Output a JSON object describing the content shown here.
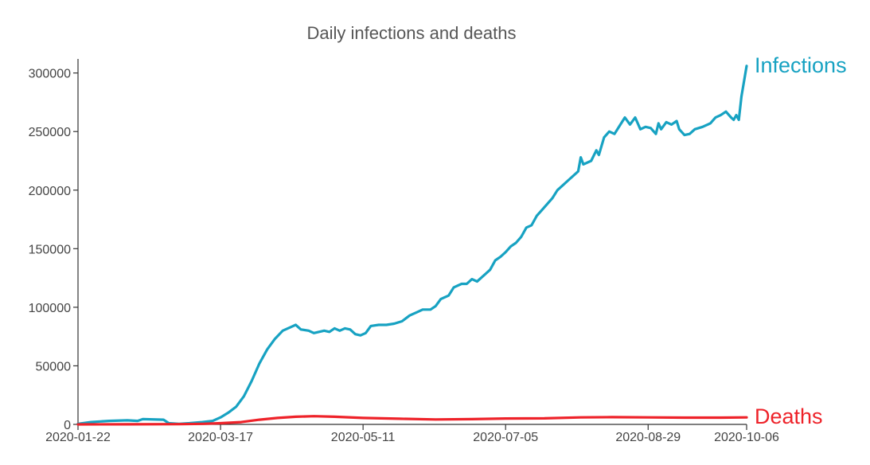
{
  "chart_data": {
    "type": "line",
    "title": "Daily infections and deaths",
    "xlabel": "",
    "ylabel": "",
    "x_ticks": [
      "2020-01-22",
      "2020-03-17",
      "2020-05-11",
      "2020-07-05",
      "2020-08-29",
      "2020-10-06"
    ],
    "y_ticks": [
      0,
      50000,
      100000,
      150000,
      200000,
      250000,
      300000
    ],
    "xlim": [
      "2020-01-22",
      "2020-10-06"
    ],
    "ylim": [
      0,
      312000
    ],
    "grid": false,
    "legend": "direct labels at line ends",
    "series": [
      {
        "name": "Infections",
        "color": "#17a2c2",
        "points": [
          [
            "2020-01-22",
            500
          ],
          [
            "2020-01-27",
            2000
          ],
          [
            "2020-02-03",
            3000
          ],
          [
            "2020-02-10",
            3500
          ],
          [
            "2020-02-14",
            3000
          ],
          [
            "2020-02-16",
            4500
          ],
          [
            "2020-02-24",
            4000
          ],
          [
            "2020-02-26",
            1000
          ],
          [
            "2020-03-01",
            500
          ],
          [
            "2020-03-05",
            1000
          ],
          [
            "2020-03-10",
            2000
          ],
          [
            "2020-03-14",
            3000
          ],
          [
            "2020-03-17",
            6000
          ],
          [
            "2020-03-20",
            10000
          ],
          [
            "2020-03-23",
            15000
          ],
          [
            "2020-03-26",
            24000
          ],
          [
            "2020-03-29",
            37000
          ],
          [
            "2020-04-01",
            52000
          ],
          [
            "2020-04-04",
            64000
          ],
          [
            "2020-04-07",
            73000
          ],
          [
            "2020-04-10",
            80000
          ],
          [
            "2020-04-13",
            83000
          ],
          [
            "2020-04-15",
            85000
          ],
          [
            "2020-04-17",
            81000
          ],
          [
            "2020-04-20",
            80000
          ],
          [
            "2020-04-22",
            78000
          ],
          [
            "2020-04-24",
            79000
          ],
          [
            "2020-04-26",
            80000
          ],
          [
            "2020-04-28",
            79000
          ],
          [
            "2020-04-30",
            82000
          ],
          [
            "2020-05-02",
            80000
          ],
          [
            "2020-05-04",
            82000
          ],
          [
            "2020-05-06",
            81000
          ],
          [
            "2020-05-08",
            77000
          ],
          [
            "2020-05-10",
            76000
          ],
          [
            "2020-05-12",
            78000
          ],
          [
            "2020-05-14",
            84000
          ],
          [
            "2020-05-17",
            85000
          ],
          [
            "2020-05-20",
            85000
          ],
          [
            "2020-05-23",
            86000
          ],
          [
            "2020-05-26",
            88000
          ],
          [
            "2020-05-29",
            93000
          ],
          [
            "2020-06-01",
            96000
          ],
          [
            "2020-06-03",
            98000
          ],
          [
            "2020-06-06",
            98000
          ],
          [
            "2020-06-08",
            101000
          ],
          [
            "2020-06-10",
            107000
          ],
          [
            "2020-06-13",
            110000
          ],
          [
            "2020-06-15",
            117000
          ],
          [
            "2020-06-18",
            120000
          ],
          [
            "2020-06-20",
            120000
          ],
          [
            "2020-06-22",
            124000
          ],
          [
            "2020-06-24",
            122000
          ],
          [
            "2020-06-27",
            128000
          ],
          [
            "2020-06-29",
            132000
          ],
          [
            "2020-07-01",
            140000
          ],
          [
            "2020-07-03",
            143000
          ],
          [
            "2020-07-05",
            147000
          ],
          [
            "2020-07-07",
            152000
          ],
          [
            "2020-07-09",
            155000
          ],
          [
            "2020-07-11",
            160000
          ],
          [
            "2020-07-13",
            168000
          ],
          [
            "2020-07-15",
            170000
          ],
          [
            "2020-07-17",
            178000
          ],
          [
            "2020-07-19",
            183000
          ],
          [
            "2020-07-21",
            188000
          ],
          [
            "2020-07-23",
            193000
          ],
          [
            "2020-07-25",
            200000
          ],
          [
            "2020-07-27",
            204000
          ],
          [
            "2020-07-29",
            208000
          ],
          [
            "2020-07-31",
            212000
          ],
          [
            "2020-08-02",
            216000
          ],
          [
            "2020-08-03",
            228000
          ],
          [
            "2020-08-04",
            222000
          ],
          [
            "2020-08-07",
            225000
          ],
          [
            "2020-08-09",
            234000
          ],
          [
            "2020-08-10",
            230000
          ],
          [
            "2020-08-12",
            245000
          ],
          [
            "2020-08-14",
            250000
          ],
          [
            "2020-08-16",
            248000
          ],
          [
            "2020-08-18",
            255000
          ],
          [
            "2020-08-20",
            262000
          ],
          [
            "2020-08-22",
            256000
          ],
          [
            "2020-08-24",
            262000
          ],
          [
            "2020-08-26",
            252000
          ],
          [
            "2020-08-28",
            254000
          ],
          [
            "2020-08-30",
            253000
          ],
          [
            "2020-09-01",
            248000
          ],
          [
            "2020-09-02",
            257000
          ],
          [
            "2020-09-03",
            252000
          ],
          [
            "2020-09-05",
            258000
          ],
          [
            "2020-09-07",
            256000
          ],
          [
            "2020-09-09",
            259000
          ],
          [
            "2020-09-10",
            252000
          ],
          [
            "2020-09-12",
            247000
          ],
          [
            "2020-09-14",
            248000
          ],
          [
            "2020-09-16",
            252000
          ],
          [
            "2020-09-19",
            254000
          ],
          [
            "2020-09-22",
            257000
          ],
          [
            "2020-09-24",
            262000
          ],
          [
            "2020-09-26",
            264000
          ],
          [
            "2020-09-28",
            267000
          ],
          [
            "2020-09-30",
            262000
          ],
          [
            "2020-10-01",
            260000
          ],
          [
            "2020-10-02",
            264000
          ],
          [
            "2020-10-03",
            260000
          ],
          [
            "2020-10-04",
            280000
          ],
          [
            "2020-10-06",
            306000
          ]
        ]
      },
      {
        "name": "Deaths",
        "color": "#ee2229",
        "points": [
          [
            "2020-01-22",
            0
          ],
          [
            "2020-02-10",
            100
          ],
          [
            "2020-03-01",
            200
          ],
          [
            "2020-03-10",
            500
          ],
          [
            "2020-03-17",
            1000
          ],
          [
            "2020-03-25",
            2000
          ],
          [
            "2020-04-01",
            4000
          ],
          [
            "2020-04-08",
            5500
          ],
          [
            "2020-04-15",
            6500
          ],
          [
            "2020-04-22",
            7000
          ],
          [
            "2020-04-30",
            6500
          ],
          [
            "2020-05-11",
            5500
          ],
          [
            "2020-05-25",
            4800
          ],
          [
            "2020-06-08",
            4200
          ],
          [
            "2020-06-22",
            4500
          ],
          [
            "2020-07-05",
            5000
          ],
          [
            "2020-07-20",
            5200
          ],
          [
            "2020-08-03",
            6000
          ],
          [
            "2020-08-15",
            6200
          ],
          [
            "2020-08-29",
            6000
          ],
          [
            "2020-09-12",
            5800
          ],
          [
            "2020-09-26",
            5800
          ],
          [
            "2020-10-06",
            6000
          ]
        ]
      }
    ]
  }
}
